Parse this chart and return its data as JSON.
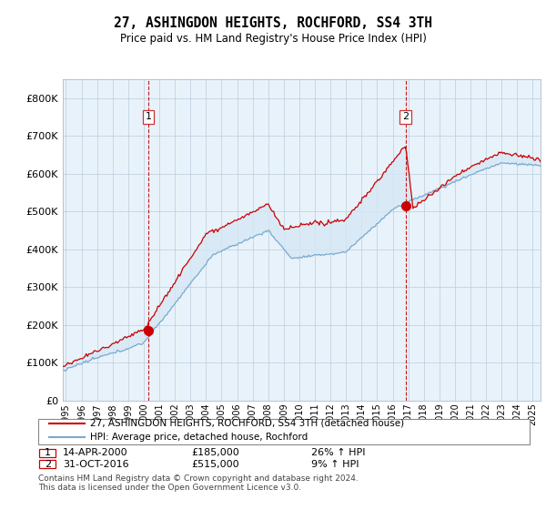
{
  "title": "27, ASHINGDON HEIGHTS, ROCHFORD, SS4 3TH",
  "subtitle": "Price paid vs. HM Land Registry's House Price Index (HPI)",
  "legend_line1": "27, ASHINGDON HEIGHTS, ROCHFORD, SS4 3TH (detached house)",
  "legend_line2": "HPI: Average price, detached house, Rochford",
  "annotation1_label": "1",
  "annotation1_date": "14-APR-2000",
  "annotation1_price": "£185,000",
  "annotation1_hpi": "26% ↑ HPI",
  "annotation2_label": "2",
  "annotation2_date": "31-OCT-2016",
  "annotation2_price": "£515,000",
  "annotation2_hpi": "9% ↑ HPI",
  "footnote1": "Contains HM Land Registry data © Crown copyright and database right 2024.",
  "footnote2": "This data is licensed under the Open Government Licence v3.0.",
  "red_color": "#cc0000",
  "blue_color": "#7aaad0",
  "fill_color": "#d6e8f5",
  "plot_bg": "#e8f2fa",
  "ylabel": "£0",
  "ylim_min": 0,
  "ylim_max": 850000,
  "yticks": [
    0,
    100000,
    200000,
    300000,
    400000,
    500000,
    600000,
    700000,
    800000
  ],
  "ytick_labels": [
    "£0",
    "£100K",
    "£200K",
    "£300K",
    "£400K",
    "£500K",
    "£600K",
    "£700K",
    "£800K"
  ],
  "sale1_x": 2000.29,
  "sale1_y": 185000,
  "sale2_x": 2016.83,
  "sale2_y": 515000,
  "vline1_x": 2000.29,
  "vline2_x": 2016.83,
  "xlim_min": 1994.8,
  "xlim_max": 2025.5,
  "xtick_years": [
    1995,
    1996,
    1997,
    1998,
    1999,
    2000,
    2001,
    2002,
    2003,
    2004,
    2005,
    2006,
    2007,
    2008,
    2009,
    2010,
    2011,
    2012,
    2013,
    2014,
    2015,
    2016,
    2017,
    2018,
    2019,
    2020,
    2021,
    2022,
    2023,
    2024,
    2025
  ]
}
